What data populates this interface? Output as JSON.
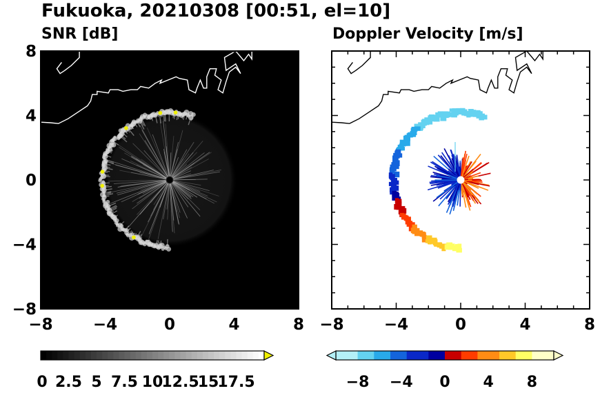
{
  "figure": {
    "title": "Fukuoka, 20210308 [00:51, el=10]"
  },
  "chart_data": [
    {
      "type": "heatmap",
      "title": "SNR [dB]",
      "xlim": [
        -8,
        8
      ],
      "ylim": [
        -8,
        8
      ],
      "x_ticks": [
        "−8",
        "−4",
        "0",
        "4",
        "8"
      ],
      "y_ticks": [
        "8",
        "4",
        "0",
        "−4",
        "−8"
      ],
      "background_color": "#000000",
      "coastline_color": "#ffffff",
      "echo_ring": {
        "center": [
          0,
          0
        ],
        "radius_km": 4.2,
        "from_deg": 70,
        "to_deg": 270,
        "peak_snr": 18
      },
      "colorbar": {
        "min": 0,
        "max": 20,
        "extend": "max",
        "tick_labels": [
          "0",
          "2.5",
          "5",
          "7.5",
          "10",
          "12.5",
          "15",
          "17.5"
        ],
        "low_color": "#000000",
        "high_color": "#ffffff",
        "over_color": "#f0f000"
      }
    },
    {
      "type": "heatmap",
      "title": "Doppler Velocity [m/s]",
      "xlim": [
        -8,
        8
      ],
      "ylim": [
        -8,
        8
      ],
      "x_ticks": [
        "−8",
        "−4",
        "0",
        "4",
        "8"
      ],
      "y_ticks": [],
      "background_color": "#ffffff",
      "coastline_color": "#000000",
      "echo_ring": {
        "center": [
          0,
          0
        ],
        "radius_km": 4.2,
        "from_deg": 70,
        "to_deg": 270
      },
      "colorbar": {
        "min": -10,
        "max": 10,
        "extend": "both",
        "tick_labels": [
          "−8",
          "−4",
          "0",
          "4",
          "8"
        ],
        "colors": [
          "#b4f0f8",
          "#64d2f0",
          "#28aaea",
          "#1464dc",
          "#0a28c8",
          "#0000a0",
          "#c80000",
          "#ff3c00",
          "#ff8c14",
          "#ffc828",
          "#ffff64",
          "#ffffc8"
        ]
      }
    }
  ]
}
